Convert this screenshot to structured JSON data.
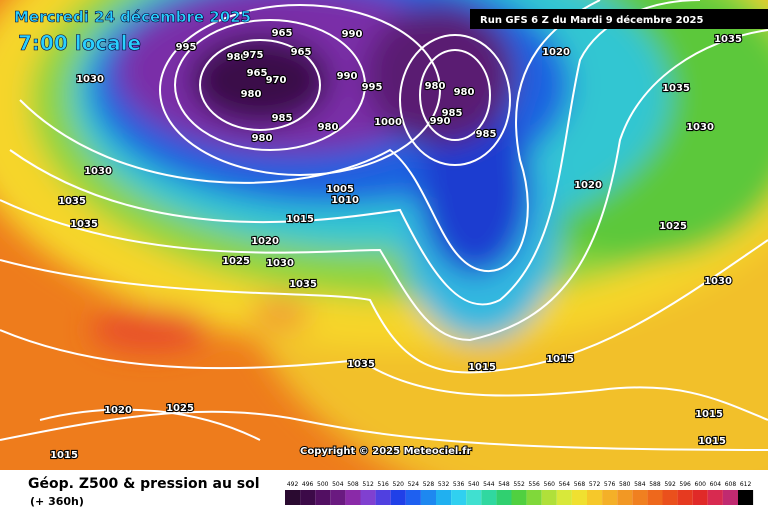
{
  "header": {
    "date": "Mercredi 24 décembre 2025",
    "time": "7:00 locale",
    "run": "Run GFS 6 Z du Mardi 9 décembre 2025"
  },
  "copyright": "Copyright © 2025 Meteociel.fr",
  "footer": {
    "title": "Géop. Z500 & pression au sol",
    "lead": "(+ 360h)"
  },
  "scale": [
    492,
    496,
    500,
    504,
    508,
    512,
    516,
    520,
    524,
    528,
    532,
    536,
    540,
    544,
    548,
    552,
    556,
    560,
    564,
    568,
    572,
    576,
    580,
    584,
    588,
    592,
    596,
    600,
    604,
    608,
    612
  ],
  "isobar_labels": [
    995,
    980,
    975,
    965,
    965,
    990,
    965,
    970,
    990,
    995,
    980,
    985,
    980,
    980,
    980,
    980,
    985,
    990,
    985,
    1000,
    1005,
    1010,
    1015,
    1020,
    1025,
    1030,
    1035,
    1030,
    1030,
    1035,
    1035,
    1020,
    1035,
    1035,
    1030,
    1020,
    1025,
    1030,
    1015,
    1015,
    1035,
    1020,
    1025,
    1015,
    1015,
    1015
  ]
}
